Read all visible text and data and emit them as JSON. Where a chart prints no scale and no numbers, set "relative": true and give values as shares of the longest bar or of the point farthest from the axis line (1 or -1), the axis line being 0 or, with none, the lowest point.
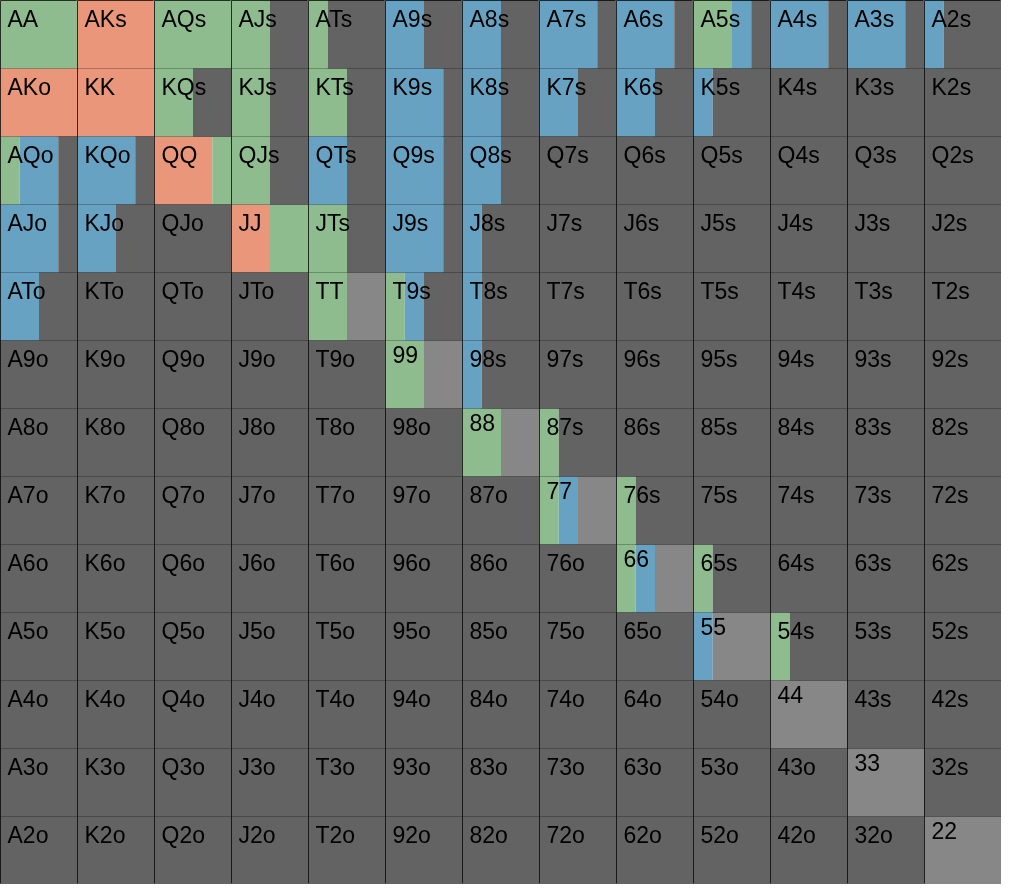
{
  "chart_data": [
    {
      "type": "bar",
      "orientation": "horizontal",
      "stacked": true,
      "relative": true,
      "tick_labels": false,
      "categories": [
        "AA",
        "AKo",
        "AQo",
        "AJo",
        "ATo",
        "A9o",
        "A8o",
        "A7o",
        "A6o",
        "A5o",
        "A4o",
        "A3o",
        "A2o"
      ],
      "series": [
        {
          "color": "#e9967a",
          "values": [
            null,
            1,
            null,
            null,
            null,
            null,
            null,
            null,
            null,
            null,
            null,
            null,
            null
          ]
        },
        {
          "color": "#8fbc8f",
          "values": [
            1,
            null,
            0.25,
            null,
            null,
            null,
            null,
            null,
            null,
            null,
            null,
            null,
            null
          ]
        },
        {
          "color": "#68a2c2",
          "values": [
            null,
            null,
            0.5,
            0.75,
            0.5,
            null,
            null,
            null,
            null,
            null,
            null,
            null,
            null
          ]
        },
        {
          "color": "#636363",
          "values": [
            null,
            null,
            0.25,
            0.25,
            0.5,
            1,
            1,
            1,
            1,
            1,
            1,
            1,
            1
          ]
        }
      ]
    },
    {
      "type": "bar",
      "orientation": "horizontal",
      "stacked": true,
      "relative": true,
      "tick_labels": false,
      "categories": [
        "AKs",
        "KK",
        "KQo",
        "KJo",
        "KTo",
        "K9o",
        "K8o",
        "K7o",
        "K6o",
        "K5o",
        "K4o",
        "K3o",
        "K2o"
      ],
      "series": [
        {
          "color": "#e9967a",
          "values": [
            1,
            1,
            null,
            null,
            null,
            null,
            null,
            null,
            null,
            null,
            null,
            null,
            null
          ]
        },
        {
          "color": "#68a2c2",
          "values": [
            null,
            null,
            0.75,
            0.5,
            null,
            null,
            null,
            null,
            null,
            null,
            null,
            null,
            null
          ]
        },
        {
          "color": "#636363",
          "values": [
            null,
            null,
            0.25,
            0.5,
            1,
            1,
            1,
            1,
            1,
            1,
            1,
            1,
            1
          ]
        }
      ]
    },
    {
      "type": "bar",
      "orientation": "horizontal",
      "stacked": true,
      "relative": true,
      "tick_labels": false,
      "categories": [
        "AQs",
        "KQs",
        "QQ",
        "QJo",
        "QTo",
        "Q9o",
        "Q8o",
        "Q7o",
        "Q6o",
        "Q5o",
        "Q4o",
        "Q3o",
        "Q2o"
      ],
      "series": [
        {
          "color": "#e9967a",
          "values": [
            null,
            null,
            0.75,
            null,
            null,
            null,
            null,
            null,
            null,
            null,
            null,
            null,
            null
          ]
        },
        {
          "color": "#8fbc8f",
          "values": [
            1,
            0.5,
            0.25,
            null,
            null,
            null,
            null,
            null,
            null,
            null,
            null,
            null,
            null
          ]
        },
        {
          "color": "#636363",
          "values": [
            null,
            0.5,
            null,
            1,
            1,
            1,
            1,
            1,
            1,
            1,
            1,
            1,
            1
          ]
        }
      ]
    },
    {
      "type": "bar",
      "orientation": "horizontal",
      "stacked": true,
      "relative": true,
      "tick_labels": false,
      "categories": [
        "AJs",
        "KJs",
        "QJs",
        "JJ",
        "JTo",
        "J9o",
        "J8o",
        "J7o",
        "J6o",
        "J5o",
        "J4o",
        "J3o",
        "J2o"
      ],
      "series": [
        {
          "color": "#e9967a",
          "values": [
            null,
            null,
            null,
            0.5,
            null,
            null,
            null,
            null,
            null,
            null,
            null,
            null,
            null
          ]
        },
        {
          "color": "#8fbc8f",
          "values": [
            0.5,
            0.5,
            0.5,
            0.5,
            null,
            null,
            null,
            null,
            null,
            null,
            null,
            null,
            null
          ]
        },
        {
          "color": "#636363",
          "values": [
            0.5,
            0.5,
            0.5,
            null,
            1,
            1,
            1,
            1,
            1,
            1,
            1,
            1,
            1
          ]
        }
      ]
    },
    {
      "type": "bar",
      "orientation": "horizontal",
      "stacked": true,
      "relative": true,
      "tick_labels": false,
      "categories": [
        "ATs",
        "KTs",
        "QTs",
        "JTs",
        "TT",
        "T9o",
        "T8o",
        "T7o",
        "T6o",
        "T5o",
        "T4o",
        "T3o",
        "T2o"
      ],
      "series": [
        {
          "color": "#8fbc8f",
          "values": [
            0.25,
            0.5,
            null,
            0.5,
            0.5,
            null,
            null,
            null,
            null,
            null,
            null,
            null,
            null
          ]
        },
        {
          "color": "#68a2c2",
          "values": [
            null,
            null,
            0.5,
            null,
            null,
            null,
            null,
            null,
            null,
            null,
            null,
            null,
            null
          ]
        },
        {
          "color": "#878787",
          "values": [
            null,
            null,
            null,
            null,
            0.5,
            null,
            null,
            null,
            null,
            null,
            null,
            null,
            null
          ]
        },
        {
          "color": "#636363",
          "values": [
            0.75,
            0.5,
            0.5,
            0.5,
            null,
            1,
            1,
            1,
            1,
            1,
            1,
            1,
            1
          ]
        }
      ]
    },
    {
      "type": "bar",
      "orientation": "horizontal",
      "stacked": true,
      "relative": true,
      "tick_labels": false,
      "categories": [
        "A9s",
        "K9s",
        "Q9s",
        "J9s",
        "T9s",
        "99",
        "98o",
        "97o",
        "96o",
        "95o",
        "94o",
        "93o",
        "92o"
      ],
      "series": [
        {
          "color": "#8fbc8f",
          "values": [
            null,
            null,
            null,
            null,
            0.25,
            0.5,
            null,
            null,
            null,
            null,
            null,
            null,
            null
          ]
        },
        {
          "color": "#68a2c2",
          "values": [
            0.5,
            0.75,
            0.75,
            0.75,
            0.25,
            null,
            null,
            null,
            null,
            null,
            null,
            null,
            null
          ]
        },
        {
          "color": "#878787",
          "values": [
            null,
            null,
            null,
            null,
            null,
            0.5,
            null,
            null,
            null,
            null,
            null,
            null,
            null
          ]
        },
        {
          "color": "#636363",
          "values": [
            0.5,
            0.25,
            0.25,
            0.25,
            0.5,
            null,
            1,
            1,
            1,
            1,
            1,
            1,
            1
          ]
        }
      ]
    },
    {
      "type": "bar",
      "orientation": "horizontal",
      "stacked": true,
      "relative": true,
      "tick_labels": false,
      "categories": [
        "A8s",
        "K8s",
        "Q8s",
        "J8s",
        "T8s",
        "98s",
        "88",
        "87o",
        "86o",
        "85o",
        "84o",
        "83o",
        "82o"
      ],
      "series": [
        {
          "color": "#8fbc8f",
          "values": [
            null,
            null,
            null,
            null,
            null,
            null,
            0.5,
            null,
            null,
            null,
            null,
            null,
            null
          ]
        },
        {
          "color": "#68a2c2",
          "values": [
            0.5,
            0.5,
            0.5,
            0.25,
            0.25,
            0.25,
            null,
            null,
            null,
            null,
            null,
            null,
            null
          ]
        },
        {
          "color": "#878787",
          "values": [
            null,
            null,
            null,
            null,
            null,
            null,
            0.5,
            null,
            null,
            null,
            null,
            null,
            null
          ]
        },
        {
          "color": "#636363",
          "values": [
            0.5,
            0.5,
            0.5,
            0.75,
            0.75,
            0.75,
            null,
            1,
            1,
            1,
            1,
            1,
            1
          ]
        }
      ]
    },
    {
      "type": "bar",
      "orientation": "horizontal",
      "stacked": true,
      "relative": true,
      "tick_labels": false,
      "categories": [
        "A7s",
        "K7s",
        "Q7s",
        "J7s",
        "T7s",
        "97s",
        "87s",
        "77",
        "76o",
        "75o",
        "74o",
        "73o",
        "72o"
      ],
      "series": [
        {
          "color": "#8fbc8f",
          "values": [
            null,
            null,
            null,
            null,
            null,
            null,
            0.25,
            0.25,
            null,
            null,
            null,
            null,
            null
          ]
        },
        {
          "color": "#68a2c2",
          "values": [
            0.75,
            0.5,
            null,
            null,
            null,
            null,
            null,
            0.25,
            null,
            null,
            null,
            null,
            null
          ]
        },
        {
          "color": "#878787",
          "values": [
            null,
            null,
            null,
            null,
            null,
            null,
            null,
            0.5,
            null,
            null,
            null,
            null,
            null
          ]
        },
        {
          "color": "#636363",
          "values": [
            0.25,
            0.5,
            1,
            1,
            1,
            1,
            0.75,
            null,
            1,
            1,
            1,
            1,
            1
          ]
        }
      ]
    },
    {
      "type": "bar",
      "orientation": "horizontal",
      "stacked": true,
      "relative": true,
      "tick_labels": false,
      "categories": [
        "A6s",
        "K6s",
        "Q6s",
        "J6s",
        "T6s",
        "96s",
        "86s",
        "76s",
        "66",
        "65o",
        "64o",
        "63o",
        "62o"
      ],
      "series": [
        {
          "color": "#8fbc8f",
          "values": [
            null,
            null,
            null,
            null,
            null,
            null,
            null,
            0.25,
            0.25,
            null,
            null,
            null,
            null
          ]
        },
        {
          "color": "#68a2c2",
          "values": [
            0.75,
            0.5,
            null,
            null,
            null,
            null,
            null,
            null,
            0.25,
            null,
            null,
            null,
            null
          ]
        },
        {
          "color": "#878787",
          "values": [
            null,
            null,
            null,
            null,
            null,
            null,
            null,
            null,
            0.5,
            null,
            null,
            null,
            null
          ]
        },
        {
          "color": "#636363",
          "values": [
            0.25,
            0.5,
            1,
            1,
            1,
            1,
            1,
            0.75,
            null,
            1,
            1,
            1,
            1
          ]
        }
      ]
    },
    {
      "type": "bar",
      "orientation": "horizontal",
      "stacked": true,
      "relative": true,
      "tick_labels": false,
      "categories": [
        "A5s",
        "K5s",
        "Q5s",
        "J5s",
        "T5s",
        "95s",
        "85s",
        "75s",
        "65s",
        "55",
        "54o",
        "53o",
        "52o"
      ],
      "series": [
        {
          "color": "#8fbc8f",
          "values": [
            0.5,
            null,
            null,
            null,
            null,
            null,
            null,
            null,
            0.25,
            null,
            null,
            null,
            null
          ]
        },
        {
          "color": "#68a2c2",
          "values": [
            0.25,
            0.25,
            null,
            null,
            null,
            null,
            null,
            null,
            null,
            0.25,
            null,
            null,
            null
          ]
        },
        {
          "color": "#878787",
          "values": [
            null,
            null,
            null,
            null,
            null,
            null,
            null,
            null,
            null,
            0.75,
            null,
            null,
            null
          ]
        },
        {
          "color": "#636363",
          "values": [
            0.25,
            0.75,
            1,
            1,
            1,
            1,
            1,
            1,
            0.75,
            null,
            1,
            1,
            1
          ]
        }
      ]
    },
    {
      "type": "bar",
      "orientation": "horizontal",
      "stacked": true,
      "relative": true,
      "tick_labels": false,
      "categories": [
        "A4s",
        "K4s",
        "Q4s",
        "J4s",
        "T4s",
        "94s",
        "84s",
        "74s",
        "64s",
        "54s",
        "44",
        "43o",
        "42o"
      ],
      "series": [
        {
          "color": "#8fbc8f",
          "values": [
            null,
            null,
            null,
            null,
            null,
            null,
            null,
            null,
            null,
            0.25,
            null,
            null,
            null
          ]
        },
        {
          "color": "#68a2c2",
          "values": [
            0.75,
            null,
            null,
            null,
            null,
            null,
            null,
            null,
            null,
            null,
            null,
            null,
            null
          ]
        },
        {
          "color": "#878787",
          "values": [
            null,
            null,
            null,
            null,
            null,
            null,
            null,
            null,
            null,
            null,
            1,
            null,
            null
          ]
        },
        {
          "color": "#636363",
          "values": [
            0.25,
            1,
            1,
            1,
            1,
            1,
            1,
            1,
            1,
            0.75,
            null,
            1,
            1
          ]
        }
      ]
    },
    {
      "type": "bar",
      "orientation": "horizontal",
      "stacked": true,
      "relative": true,
      "tick_labels": false,
      "categories": [
        "A3s",
        "K3s",
        "Q3s",
        "J3s",
        "T3s",
        "93s",
        "83s",
        "73s",
        "63s",
        "53s",
        "43s",
        "33",
        "32o"
      ],
      "series": [
        {
          "color": "#68a2c2",
          "values": [
            0.75,
            null,
            null,
            null,
            null,
            null,
            null,
            null,
            null,
            null,
            null,
            null,
            null
          ]
        },
        {
          "color": "#878787",
          "values": [
            null,
            null,
            null,
            null,
            null,
            null,
            null,
            null,
            null,
            null,
            null,
            1,
            null
          ]
        },
        {
          "color": "#636363",
          "values": [
            0.25,
            1,
            1,
            1,
            1,
            1,
            1,
            1,
            1,
            1,
            1,
            null,
            1
          ]
        }
      ]
    },
    {
      "type": "bar",
      "orientation": "horizontal",
      "stacked": true,
      "relative": true,
      "tick_labels": false,
      "categories": [
        "A2s",
        "K2s",
        "Q2s",
        "J2s",
        "T2s",
        "92s",
        "82s",
        "72s",
        "62s",
        "52s",
        "42s",
        "32s",
        "22"
      ],
      "series": [
        {
          "color": "#68a2c2",
          "values": [
            0.25,
            null,
            null,
            null,
            null,
            null,
            null,
            null,
            null,
            null,
            null,
            null,
            null
          ]
        },
        {
          "color": "#878787",
          "values": [
            null,
            null,
            null,
            null,
            null,
            null,
            null,
            null,
            null,
            null,
            null,
            null,
            1
          ]
        },
        {
          "color": "#636363",
          "values": [
            0.75,
            1,
            1,
            1,
            1,
            1,
            1,
            1,
            1,
            1,
            1,
            1,
            null
          ]
        }
      ]
    }
  ]
}
